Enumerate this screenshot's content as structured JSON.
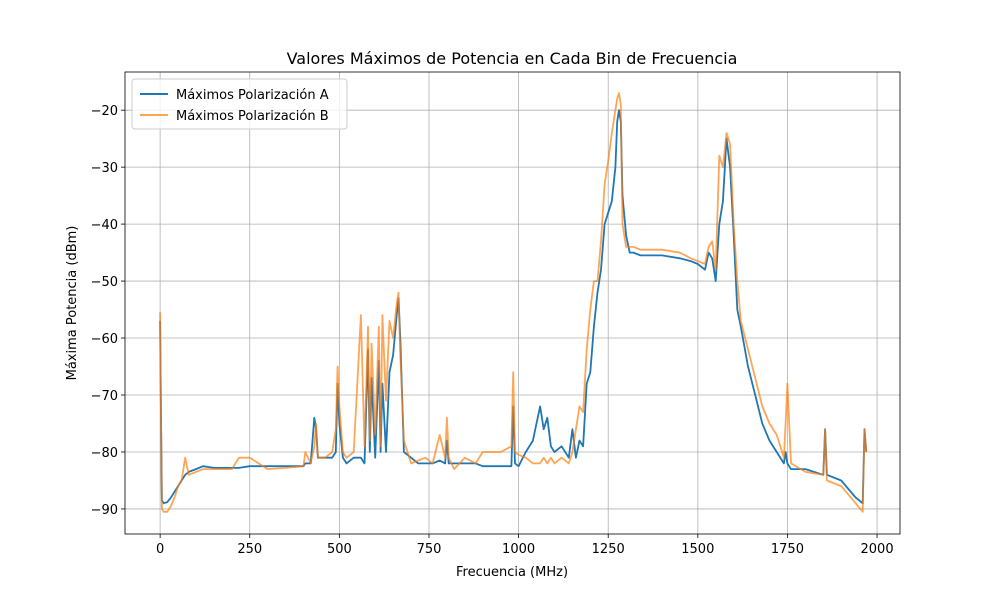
{
  "chart_data": {
    "type": "line",
    "title": "Valores Máximos de Potencia en Cada Bin de Frecuencia",
    "xlabel": "Frecuencia (MHz)",
    "ylabel": "Máxima Potencia (dBm)",
    "x": [
      0,
      2,
      5,
      10,
      20,
      30,
      40,
      50,
      60,
      70,
      80,
      100,
      120,
      150,
      200,
      220,
      250,
      300,
      350,
      400,
      405,
      420,
      430,
      435,
      440,
      460,
      480,
      490,
      495,
      500,
      510,
      520,
      540,
      560,
      570,
      580,
      585,
      590,
      600,
      610,
      615,
      620,
      630,
      640,
      650,
      660,
      665,
      670,
      680,
      700,
      720,
      740,
      760,
      780,
      795,
      800,
      805,
      820,
      850,
      880,
      900,
      950,
      980,
      985,
      990,
      1000,
      1020,
      1040,
      1060,
      1070,
      1080,
      1090,
      1100,
      1120,
      1140,
      1150,
      1160,
      1170,
      1180,
      1190,
      1200,
      1210,
      1220,
      1230,
      1240,
      1250,
      1260,
      1270,
      1275,
      1280,
      1285,
      1290,
      1300,
      1310,
      1320,
      1340,
      1400,
      1450,
      1480,
      1500,
      1520,
      1530,
      1540,
      1550,
      1560,
      1570,
      1580,
      1590,
      1600,
      1610,
      1620,
      1640,
      1660,
      1680,
      1700,
      1720,
      1740,
      1745,
      1750,
      1760,
      1800,
      1850,
      1855,
      1860,
      1900,
      1940,
      1960,
      1965,
      1970
    ],
    "series": [
      {
        "name": "Máximos Polarización A",
        "color": "#1f77b4",
        "values": [
          -57,
          -70,
          -88.5,
          -89,
          -88.8,
          -88,
          -87,
          -86,
          -85,
          -84,
          -83.5,
          -83,
          -82.5,
          -82.8,
          -82.8,
          -82.8,
          -82.5,
          -82.5,
          -82.5,
          -82.5,
          -82,
          -82,
          -74,
          -76,
          -81,
          -81,
          -81,
          -80,
          -68,
          -75,
          -81,
          -82,
          -81,
          -81,
          -82,
          -62,
          -80,
          -67,
          -81,
          -64,
          -80,
          -68,
          -80,
          -66,
          -63,
          -56,
          -53,
          -60,
          -80,
          -81,
          -82,
          -82,
          -82,
          -81.5,
          -82,
          -78,
          -82,
          -82,
          -82,
          -82,
          -82.5,
          -82.5,
          -82.5,
          -72,
          -82,
          -82.5,
          -80,
          -78,
          -72,
          -76,
          -74,
          -79,
          -80,
          -79,
          -81,
          -76,
          -81,
          -78,
          -79,
          -68,
          -66,
          -58,
          -52,
          -48,
          -40,
          -38,
          -36,
          -30,
          -22,
          -20,
          -22,
          -35,
          -42,
          -45,
          -45,
          -45.5,
          -45.5,
          -46,
          -46.5,
          -47,
          -48,
          -45,
          -46,
          -50,
          -40,
          -36,
          -25,
          -30,
          -42,
          -55,
          -58,
          -65,
          -70,
          -75,
          -78,
          -80,
          -82,
          -80,
          -82,
          -83,
          -83,
          -84,
          -76,
          -84,
          -85,
          -88,
          -89,
          -76,
          -80
        ]
      },
      {
        "name": "Máximos Polarización B",
        "color": "#ff7f0e",
        "values": [
          -55.5,
          -70,
          -90,
          -90.5,
          -90.5,
          -89.5,
          -88,
          -86,
          -85,
          -81,
          -84,
          -83.5,
          -83,
          -83,
          -83,
          -81,
          -81,
          -83,
          -82.8,
          -82.5,
          -80,
          -82,
          -79,
          -75,
          -81,
          -81,
          -80,
          -76,
          -65,
          -72,
          -80,
          -81,
          -80,
          -56,
          -79,
          -58,
          -78,
          -61,
          -77,
          -58,
          -79,
          -56,
          -71,
          -57,
          -60,
          -54,
          -52,
          -63,
          -78,
          -82,
          -81.5,
          -81,
          -82,
          -77,
          -81,
          -74,
          -81,
          -83,
          -81,
          -82,
          -80,
          -80,
          -79,
          -66,
          -80,
          -80.5,
          -81,
          -82,
          -82,
          -81,
          -82,
          -81,
          -82,
          -81,
          -82,
          -80,
          -76,
          -72,
          -73,
          -62,
          -55,
          -50,
          -50,
          -43,
          -33,
          -29,
          -24,
          -20,
          -18,
          -17,
          -19,
          -40,
          -44,
          -44,
          -44,
          -44.5,
          -44.5,
          -45,
          -46,
          -46.5,
          -47,
          -44,
          -43,
          -48,
          -28,
          -30,
          -24,
          -26,
          -40,
          -50,
          -57,
          -62,
          -67,
          -72,
          -75,
          -77,
          -81,
          -75,
          -68,
          -82,
          -83.5,
          -84,
          -76,
          -85,
          -86,
          -89,
          -90.5,
          -76,
          -80
        ]
      }
    ],
    "xlim": [
      -98,
      2064
    ],
    "ylim": [
      -94.4,
      -13.3
    ],
    "xticks": [
      0,
      250,
      500,
      750,
      1000,
      1250,
      1500,
      1750,
      2000
    ],
    "yticks": [
      {
        "value": -90,
        "label": "−90"
      },
      {
        "value": -80,
        "label": "−80"
      },
      {
        "value": -70,
        "label": "−70"
      },
      {
        "value": -60,
        "label": "−60"
      },
      {
        "value": -50,
        "label": "−50"
      },
      {
        "value": -40,
        "label": "−40"
      },
      {
        "value": -30,
        "label": "−30"
      },
      {
        "value": -20,
        "label": "−20"
      }
    ],
    "grid": true,
    "legend": "upper left"
  }
}
